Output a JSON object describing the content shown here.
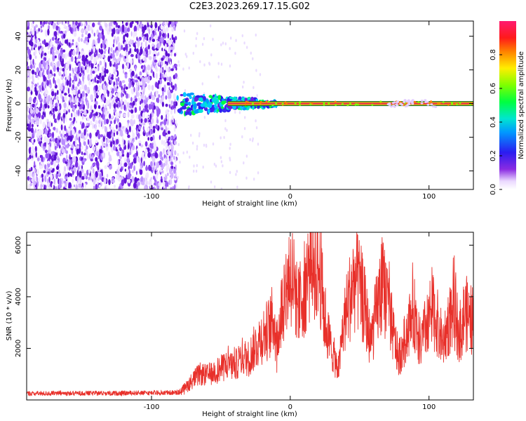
{
  "figure_title": "C2E3.2023.269.17.15.G02",
  "colors": {
    "line": "#e8302a",
    "axis": "#000000",
    "background": "#ffffff",
    "ridge": "#e8304a"
  },
  "chart_data": [
    {
      "type": "heatmap",
      "xlabel": "Height of straight line (km)",
      "ylabel": "Frequency (Hz)",
      "xlim": [
        -190,
        132
      ],
      "ylim": [
        -51,
        49
      ],
      "x_ticks": [
        "-100",
        "0",
        "100"
      ],
      "x_tick_values": [
        -100,
        0,
        100
      ],
      "y_ticks": [
        "-40",
        "-20",
        "0",
        "20",
        "40"
      ],
      "y_tick_values": [
        -40,
        -20,
        0,
        20,
        40
      ],
      "ridge_frequency": 0,
      "noise_region_x": [
        -190,
        -82
      ],
      "transition_region_x": [
        -82,
        -20
      ],
      "colorbar": {
        "label": "Normalized spectral amplitude",
        "ticks": [
          "0.0",
          "0.2",
          "0.4",
          "0.6",
          "0.8"
        ],
        "tick_values": [
          0,
          0.2,
          0.4,
          0.6,
          0.8
        ],
        "range": [
          0,
          1
        ],
        "colormap": "rainbow (white-violet-blue-cyan-green-yellow-red-magenta)"
      }
    },
    {
      "type": "line",
      "xlabel": "Height of straight line (km)",
      "ylabel": "SNR (10 * v/v)",
      "xlim": [
        -190,
        132
      ],
      "ylim": [
        0,
        6500
      ],
      "x_ticks": [
        "-100",
        "0",
        "100"
      ],
      "x_tick_values": [
        -100,
        0,
        100
      ],
      "y_ticks": [
        "2000",
        "4000",
        "6000"
      ],
      "y_tick_values": [
        2000,
        4000,
        6000
      ],
      "series": [
        {
          "x": [
            -190,
            -170,
            -150,
            -130,
            -110,
            -90,
            -80,
            -75,
            -70,
            -65,
            -60,
            -55,
            -50,
            -45,
            -40,
            -35,
            -30,
            -25,
            -20,
            -15,
            -12,
            -10,
            -8,
            -5,
            -3,
            0,
            3,
            6,
            10,
            14,
            18,
            22,
            24,
            28,
            32,
            35,
            38,
            42,
            46,
            50,
            54,
            58,
            62,
            66,
            70,
            74,
            78,
            82,
            86,
            90,
            94,
            98,
            102,
            106,
            110,
            114,
            118,
            122,
            126,
            132
          ],
          "y": [
            250,
            250,
            260,
            260,
            270,
            280,
            290,
            500,
            800,
            1000,
            950,
            1100,
            1200,
            1400,
            1300,
            1700,
            1600,
            2100,
            2500,
            2800,
            3200,
            2200,
            2800,
            4000,
            4400,
            5000,
            4500,
            3600,
            4300,
            5200,
            5500,
            4800,
            3500,
            2300,
            1600,
            1200,
            2800,
            3800,
            4700,
            4400,
            3500,
            2200,
            3400,
            4400,
            4000,
            2600,
            1600,
            2200,
            3000,
            3300,
            2100,
            2900,
            3600,
            3000,
            2200,
            3000,
            3500,
            2600,
            3400,
            3000
          ]
        }
      ]
    }
  ]
}
